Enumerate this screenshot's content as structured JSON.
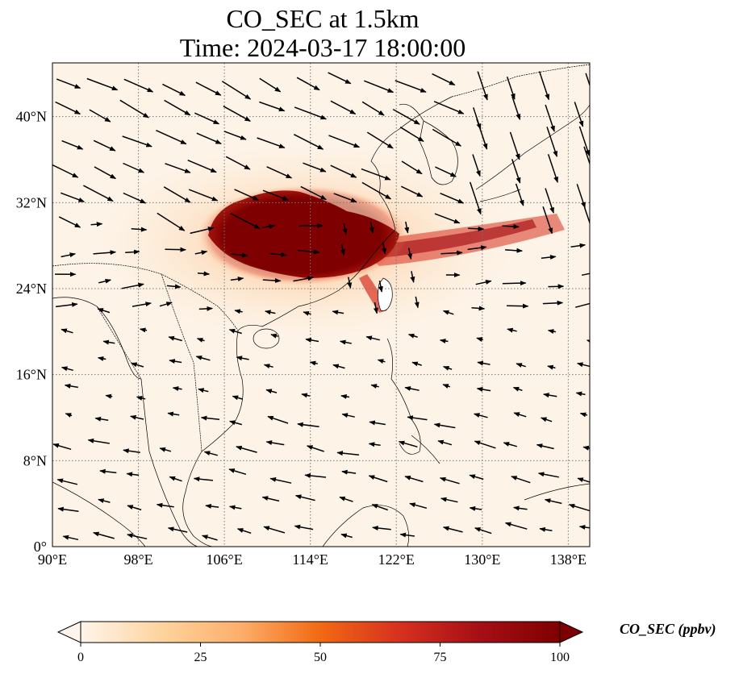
{
  "title": {
    "line1": "CO_SEC at 1.5km",
    "line2": "Time: 2024-03-17 18:00:00"
  },
  "map": {
    "lon_range": [
      90,
      140
    ],
    "lat_range": [
      0,
      45
    ],
    "lon_ticks": [
      {
        "value": 90,
        "label": "90°E"
      },
      {
        "value": 98,
        "label": "98°E"
      },
      {
        "value": 106,
        "label": "106°E"
      },
      {
        "value": 114,
        "label": "114°E"
      },
      {
        "value": 122,
        "label": "122°E"
      },
      {
        "value": 130,
        "label": "130°E"
      },
      {
        "value": 138,
        "label": "138°E"
      }
    ],
    "lat_ticks": [
      {
        "value": 0,
        "label": "0°"
      },
      {
        "value": 8,
        "label": "8°N"
      },
      {
        "value": 16,
        "label": "16°N"
      },
      {
        "value": 24,
        "label": "24°N"
      },
      {
        "value": 32,
        "label": "32°N"
      },
      {
        "value": 40,
        "label": "40°N"
      }
    ],
    "gridlines": true,
    "plume": {
      "core_lon": [
        103,
        119
      ],
      "core_lat": [
        25,
        33
      ],
      "peak_value": 100
    }
  },
  "colorbar": {
    "label": "CO_SEC (ppbv)",
    "range": [
      0,
      100
    ],
    "ticks": [
      {
        "value": 0,
        "label": "0"
      },
      {
        "value": 25,
        "label": "25"
      },
      {
        "value": 50,
        "label": "50"
      },
      {
        "value": 75,
        "label": "75"
      },
      {
        "value": 100,
        "label": "100"
      }
    ],
    "extend": "both",
    "colors": [
      "#fff5eb",
      "#fdd49e",
      "#fdae6b",
      "#f16913",
      "#d7301f",
      "#a50f15",
      "#7f0000"
    ]
  }
}
